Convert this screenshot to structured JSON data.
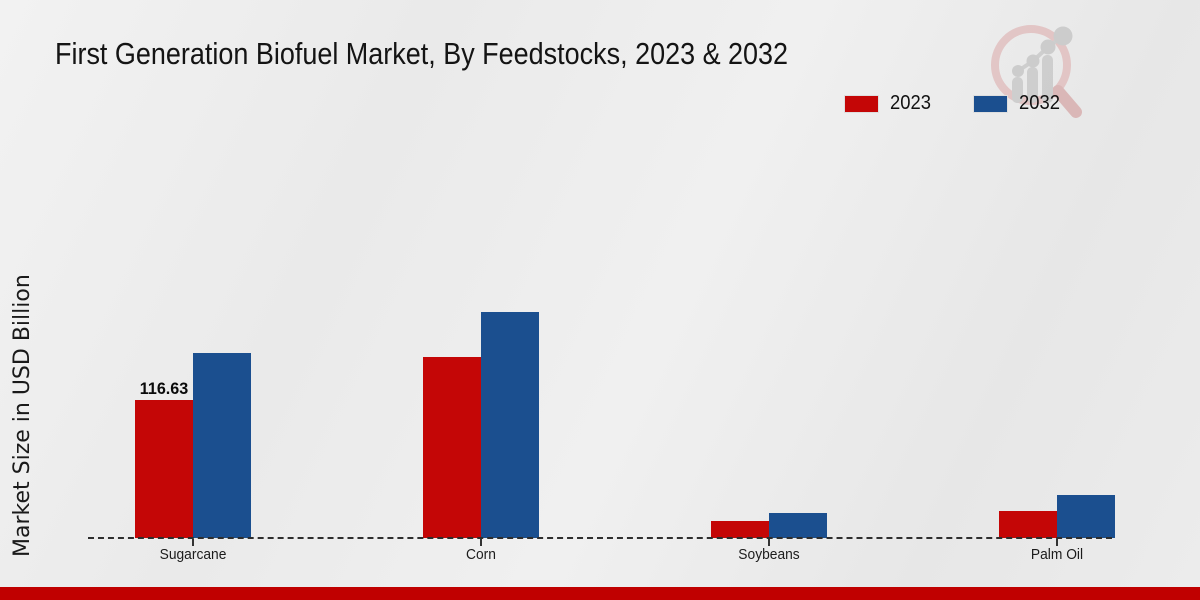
{
  "title": "First Generation Biofuel Market, By Feedstocks, 2023 & 2032",
  "ylabel": "Market Size in USD Billion",
  "legend": [
    {
      "label": "2023",
      "color": "#c40606"
    },
    {
      "label": "2032",
      "color": "#1b4f8f"
    }
  ],
  "footer_color": "#c00000",
  "watermark_icon": "magnifier-growth-chart-logo",
  "chart_data": {
    "type": "bar",
    "title": "First Generation Biofuel Market, By Feedstocks, 2023 & 2032",
    "ylabel": "Market Size in USD Billion",
    "xlabel": "",
    "categories": [
      "Sugarcane",
      "Corn",
      "Soybeans",
      "Palm Oil"
    ],
    "series": [
      {
        "name": "2023",
        "color": "#c40606",
        "values": [
          116.63,
          153.0,
          14.5,
          23.0
        ]
      },
      {
        "name": "2032",
        "color": "#1b4f8f",
        "values": [
          156.5,
          191.0,
          21.0,
          36.5
        ]
      }
    ],
    "data_labels": [
      {
        "series": "2023",
        "category": "Sugarcane",
        "text": "116.63"
      }
    ],
    "ylim": [
      0,
      210
    ],
    "grid": false,
    "baseline_style": "dashed",
    "legend_position": "top-right"
  }
}
